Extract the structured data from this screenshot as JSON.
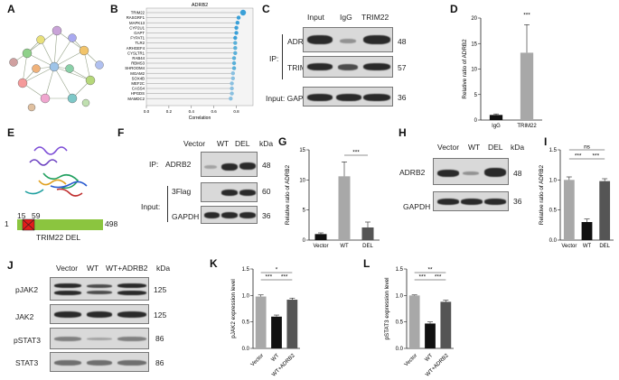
{
  "panels": {
    "A": "A",
    "B": "B",
    "C": "C",
    "D": "D",
    "E": "E",
    "F": "F",
    "G": "G",
    "H": "H",
    "I": "I",
    "J": "J",
    "K": "K",
    "L": "L"
  },
  "panelB": {
    "title": "ADRB2",
    "genes": [
      "TRIM22",
      "RASGRF1",
      "MAPK13",
      "CYP2U1",
      "GAPT",
      "FYPAT1",
      "TLR2",
      "ARHGEF4",
      "CYSLTR1",
      "RAB44",
      "RBMS3",
      "SHROOM4",
      "MGAM2",
      "SOX4B",
      "MEF2C",
      "CASS4",
      "HPGDS",
      "MAMDC2"
    ],
    "xlabel": "Correlation",
    "ticks": [
      "0.0",
      "0.2",
      "0.4",
      "0.6",
      "0.8"
    ]
  },
  "panelC": {
    "headers": [
      "Input",
      "IgG",
      "TRIM22"
    ],
    "ip_label": "IP:",
    "rows": [
      "ADRB2",
      "TRIM22"
    ],
    "input_label": "Input: GAPDH",
    "kda": [
      "48",
      "57",
      "36"
    ]
  },
  "panelE": {
    "pos_start": "1",
    "pos_15": "15",
    "pos_59": "59",
    "pos_end": "498",
    "construct": "TRIM22 DEL"
  },
  "panelF": {
    "headers": [
      "Vector",
      "WT",
      "DEL",
      "kDa"
    ],
    "ip_label": "IP:",
    "input_label": "Input:",
    "rows": [
      "ADRB2",
      "3Flag",
      "GAPDH"
    ],
    "kda": [
      "48",
      "60",
      "36"
    ]
  },
  "panelH": {
    "headers": [
      "Vector",
      "WT",
      "DEL",
      "kDa"
    ],
    "rows": [
      "ADRB2",
      "GAPDH"
    ],
    "kda": [
      "48",
      "36"
    ]
  },
  "panelJ": {
    "headers": [
      "Vector",
      "WT",
      "WT+ADRB2",
      "kDa"
    ],
    "rows": [
      "pJAK2",
      "JAK2",
      "pSTAT3",
      "STAT3"
    ],
    "kda": [
      "125",
      "125",
      "86",
      "86"
    ]
  },
  "chart_data": [
    {
      "panel": "D",
      "type": "bar",
      "categories": [
        "IgG",
        "TRIM22"
      ],
      "values": [
        1.0,
        13.2
      ],
      "errors": [
        0.2,
        5.5
      ],
      "ylabel": "Relative ratio of ADRB2",
      "ylim": [
        0,
        20
      ],
      "yticks": [
        "0",
        "5",
        "10",
        "15",
        "20"
      ],
      "significance": [
        "***"
      ],
      "colors": [
        "#111111",
        "#a8a8a8"
      ]
    },
    {
      "panel": "G",
      "type": "bar",
      "categories": [
        "Vector",
        "WT",
        "DEL"
      ],
      "values": [
        1.0,
        10.6,
        2.1
      ],
      "errors": [
        0.2,
        2.4,
        0.9
      ],
      "ylabel": "Relative ratio of ADRB2",
      "ylim": [
        0,
        15
      ],
      "yticks": [
        "0",
        "5",
        "10",
        "15"
      ],
      "significance": [
        "***"
      ],
      "colors": [
        "#111111",
        "#a8a8a8",
        "#555555"
      ]
    },
    {
      "panel": "I",
      "type": "bar",
      "categories": [
        "Vector",
        "WT",
        "DEL"
      ],
      "values": [
        1.0,
        0.3,
        0.98
      ],
      "errors": [
        0.05,
        0.05,
        0.04
      ],
      "ylabel": "Relative ratio of ADRB2",
      "ylim": [
        0,
        1.5
      ],
      "yticks": [
        "0.0",
        "0.5",
        "1.0",
        "1.5"
      ],
      "significance": [
        "ns",
        "***",
        "***"
      ],
      "colors": [
        "#a8a8a8",
        "#111111",
        "#555555"
      ]
    },
    {
      "panel": "K",
      "type": "bar",
      "categories": [
        "Vector",
        "WT",
        "WT+ADRB2"
      ],
      "values": [
        0.98,
        0.6,
        0.92
      ],
      "errors": [
        0.03,
        0.03,
        0.03
      ],
      "ylabel": "pJAK2 expression level",
      "ylim": [
        0,
        1.5
      ],
      "yticks": [
        "0.0",
        "0.5",
        "1.0",
        "1.5"
      ],
      "significance": [
        "*",
        "***",
        "***"
      ],
      "colors": [
        "#a8a8a8",
        "#111111",
        "#555555"
      ]
    },
    {
      "panel": "L",
      "type": "bar",
      "categories": [
        "Vector",
        "WT",
        "WT+ADRB2"
      ],
      "values": [
        1.0,
        0.47,
        0.88
      ],
      "errors": [
        0.01,
        0.03,
        0.03
      ],
      "ylabel": "pSTAT3 expression level",
      "ylim": [
        0,
        1.5
      ],
      "yticks": [
        "0.0",
        "0.5",
        "1.0",
        "1.5"
      ],
      "significance": [
        "**",
        "***",
        "***"
      ],
      "colors": [
        "#a8a8a8",
        "#111111",
        "#555555"
      ]
    }
  ]
}
